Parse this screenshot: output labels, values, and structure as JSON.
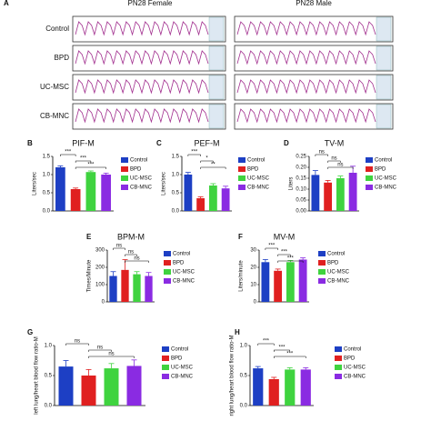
{
  "panel_a": {
    "panel": "A",
    "columns": [
      "PN28 Female",
      "PN28 Male"
    ],
    "rows": [
      "Control",
      "BPD",
      "UC-MSC",
      "CB-MNC"
    ]
  },
  "chart_data": [
    {
      "type": "bar",
      "panel": "B",
      "title": "PIF-M",
      "y_label": "Liters/sec",
      "ylim": [
        0,
        1.5
      ],
      "yticks": [
        {
          "value": 0,
          "label": "0.0"
        },
        {
          "value": 0.5,
          "label": "0.5"
        },
        {
          "value": 1.0,
          "label": "1.0"
        },
        {
          "value": 1.5,
          "label": "1.5"
        }
      ],
      "series": [
        {
          "name": "Control",
          "color": "#1d3fc4",
          "values": [
            1.2
          ],
          "errors": [
            0.04
          ]
        },
        {
          "name": "BPD",
          "color": "#e02020",
          "values": [
            0.6
          ],
          "errors": [
            0.03
          ]
        },
        {
          "name": "UC-MSC",
          "color": "#3fd33f",
          "values": [
            1.07
          ],
          "errors": [
            0.03
          ]
        },
        {
          "name": "CB-MNC",
          "color": "#8a2be2",
          "values": [
            1.0
          ],
          "errors": [
            0.04
          ]
        }
      ],
      "annotations": [
        {
          "text": "***",
          "pair": [
            0,
            1
          ]
        },
        {
          "text": "***",
          "pair": [
            1,
            2
          ]
        },
        {
          "text": "***",
          "pair": [
            1,
            3
          ]
        }
      ]
    },
    {
      "type": "bar",
      "panel": "C",
      "title": "PEF-M",
      "y_label": "Liters/sec",
      "ylim": [
        0,
        1.5
      ],
      "yticks": [
        {
          "value": 0,
          "label": "0.0"
        },
        {
          "value": 0.5,
          "label": "0.5"
        },
        {
          "value": 1.0,
          "label": "1.0"
        },
        {
          "value": 1.5,
          "label": "1.5"
        }
      ],
      "series": [
        {
          "name": "Control",
          "color": "#1d3fc4",
          "values": [
            1.0
          ],
          "errors": [
            0.06
          ]
        },
        {
          "name": "BPD",
          "color": "#e02020",
          "values": [
            0.35
          ],
          "errors": [
            0.04
          ]
        },
        {
          "name": "UC-MSC",
          "color": "#3fd33f",
          "values": [
            0.7
          ],
          "errors": [
            0.05
          ]
        },
        {
          "name": "CB-MNC",
          "color": "#8a2be2",
          "values": [
            0.62
          ],
          "errors": [
            0.06
          ]
        }
      ],
      "annotations": [
        {
          "text": "***",
          "pair": [
            0,
            1
          ]
        },
        {
          "text": "*",
          "pair": [
            1,
            2
          ]
        },
        {
          "text": "**",
          "pair": [
            1,
            3
          ]
        }
      ]
    },
    {
      "type": "bar",
      "panel": "D",
      "title": "TV-M",
      "y_label": "Liters",
      "ylim": [
        0,
        0.25
      ],
      "yticks": [
        {
          "value": 0,
          "label": "0.00"
        },
        {
          "value": 0.05,
          "label": "0.05"
        },
        {
          "value": 0.1,
          "label": "0.10"
        },
        {
          "value": 0.15,
          "label": "0.15"
        },
        {
          "value": 0.2,
          "label": "0.20"
        },
        {
          "value": 0.25,
          "label": "0.25"
        }
      ],
      "series": [
        {
          "name": "Control",
          "color": "#1d3fc4",
          "values": [
            0.165
          ],
          "errors": [
            0.02
          ]
        },
        {
          "name": "BPD",
          "color": "#e02020",
          "values": [
            0.13
          ],
          "errors": [
            0.01
          ]
        },
        {
          "name": "UC-MSC",
          "color": "#3fd33f",
          "values": [
            0.15
          ],
          "errors": [
            0.01
          ]
        },
        {
          "name": "CB-MNC",
          "color": "#8a2be2",
          "values": [
            0.175
          ],
          "errors": [
            0.03
          ]
        }
      ],
      "annotations": [
        {
          "text": "ns",
          "pair": [
            0,
            1
          ]
        },
        {
          "text": "ns",
          "pair": [
            1,
            2
          ]
        },
        {
          "text": "ns",
          "pair": [
            1,
            3
          ]
        }
      ]
    },
    {
      "type": "bar",
      "panel": "E",
      "title": "BPM-M",
      "y_label": "Times/Minute",
      "ylim": [
        0,
        300
      ],
      "yticks": [
        0,
        100,
        200,
        300
      ],
      "series": [
        {
          "name": "Control",
          "color": "#1d3fc4",
          "values": [
            150
          ],
          "errors": [
            25
          ]
        },
        {
          "name": "BPD",
          "color": "#e02020",
          "values": [
            185
          ],
          "errors": [
            60
          ]
        },
        {
          "name": "UC-MSC",
          "color": "#3fd33f",
          "values": [
            160
          ],
          "errors": [
            15
          ]
        },
        {
          "name": "CB-MNC",
          "color": "#8a2be2",
          "values": [
            150
          ],
          "errors": [
            20
          ]
        }
      ],
      "annotations": [
        {
          "text": "ns",
          "pair": [
            0,
            1
          ]
        },
        {
          "text": "ns",
          "pair": [
            1,
            2
          ]
        },
        {
          "text": "ns",
          "pair": [
            1,
            3
          ]
        }
      ]
    },
    {
      "type": "bar",
      "panel": "F",
      "title": "MV-M",
      "y_label": "Liters/minute",
      "ylim": [
        0,
        30
      ],
      "yticks": [
        0,
        10,
        20,
        30
      ],
      "series": [
        {
          "name": "Control",
          "color": "#1d3fc4",
          "values": [
            23
          ],
          "errors": [
            1.5
          ]
        },
        {
          "name": "BPD",
          "color": "#e02020",
          "values": [
            18
          ],
          "errors": [
            1
          ]
        },
        {
          "name": "UC-MSC",
          "color": "#3fd33f",
          "values": [
            23
          ],
          "errors": [
            1
          ]
        },
        {
          "name": "CB-MNC",
          "color": "#8a2be2",
          "values": [
            24.5
          ],
          "errors": [
            1
          ]
        }
      ],
      "annotations": [
        {
          "text": "***",
          "pair": [
            0,
            1
          ]
        },
        {
          "text": "***",
          "pair": [
            1,
            2
          ]
        },
        {
          "text": "***",
          "pair": [
            1,
            3
          ]
        }
      ]
    },
    {
      "type": "bar",
      "panel": "G",
      "y_label": "left lung/heart blood flow ratio-M",
      "ylim": [
        0,
        1.0
      ],
      "yticks": [
        {
          "value": 0,
          "label": "0.0"
        },
        {
          "value": 0.5,
          "label": "0.5"
        },
        {
          "value": 1.0,
          "label": "1.0"
        }
      ],
      "series": [
        {
          "name": "Control",
          "color": "#1d3fc4",
          "values": [
            0.65
          ],
          "errors": [
            0.1
          ]
        },
        {
          "name": "BPD",
          "color": "#e02020",
          "values": [
            0.5
          ],
          "errors": [
            0.1
          ]
        },
        {
          "name": "UC-MSC",
          "color": "#3fd33f",
          "values": [
            0.62
          ],
          "errors": [
            0.08
          ]
        },
        {
          "name": "CB-MNC",
          "color": "#8a2be2",
          "values": [
            0.66
          ],
          "errors": [
            0.1
          ]
        }
      ],
      "annotations": [
        {
          "text": "ns",
          "pair": [
            0,
            1
          ]
        },
        {
          "text": "ns",
          "pair": [
            1,
            2
          ]
        },
        {
          "text": "ns",
          "pair": [
            1,
            3
          ]
        }
      ]
    },
    {
      "type": "bar",
      "panel": "H",
      "y_label": "right lung/heart blood flow ratio-M",
      "ylim": [
        0,
        1.0
      ],
      "yticks": [
        {
          "value": 0,
          "label": "0.0"
        },
        {
          "value": 0.5,
          "label": "0.5"
        },
        {
          "value": 1.0,
          "label": "1.0"
        }
      ],
      "series": [
        {
          "name": "Control",
          "color": "#1d3fc4",
          "values": [
            0.62
          ],
          "errors": [
            0.03
          ]
        },
        {
          "name": "BPD",
          "color": "#e02020",
          "values": [
            0.44
          ],
          "errors": [
            0.03
          ]
        },
        {
          "name": "UC-MSC",
          "color": "#3fd33f",
          "values": [
            0.6
          ],
          "errors": [
            0.03
          ]
        },
        {
          "name": "CB-MNC",
          "color": "#8a2be2",
          "values": [
            0.6
          ],
          "errors": [
            0.03
          ]
        }
      ],
      "annotations": [
        {
          "text": "***",
          "pair": [
            0,
            1
          ]
        },
        {
          "text": "***",
          "pair": [
            1,
            2
          ]
        },
        {
          "text": "***",
          "pair": [
            1,
            3
          ]
        }
      ]
    }
  ]
}
